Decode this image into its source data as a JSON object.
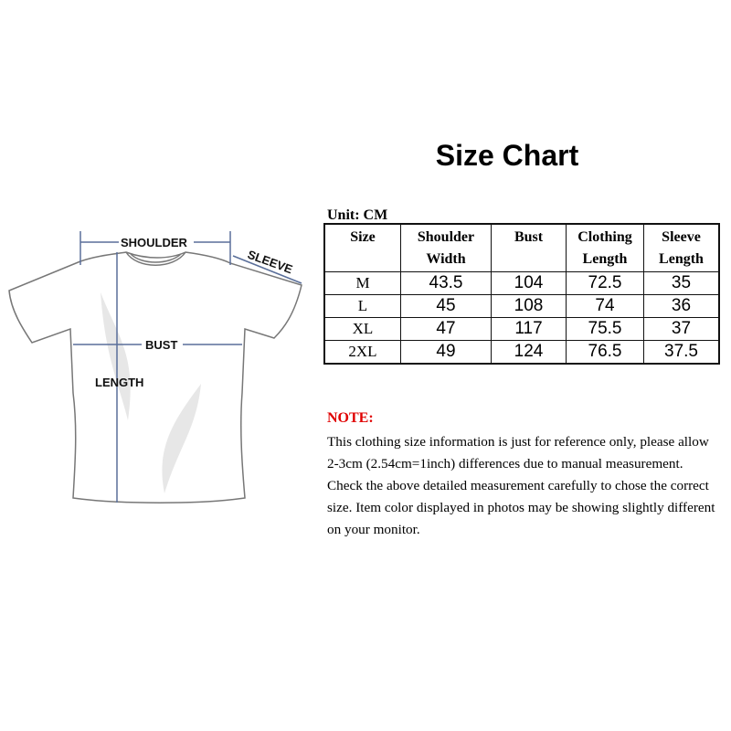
{
  "title": "Size Chart",
  "unit": "Unit: CM",
  "diagram_labels": {
    "shoulder": "SHOULDER",
    "sleeve": "SLEEVE",
    "bust": "BUST",
    "length": "LENGTH"
  },
  "table": {
    "headers": [
      [
        "Size"
      ],
      [
        "Shoulder",
        "Width"
      ],
      [
        "Bust"
      ],
      [
        "Clothing",
        "Length"
      ],
      [
        "Sleeve",
        "Length"
      ]
    ],
    "rows": [
      [
        "M",
        "43.5",
        "104",
        "72.5",
        "35"
      ],
      [
        "L",
        "45",
        "108",
        "74",
        "36"
      ],
      [
        "XL",
        "47",
        "117",
        "75.5",
        "37"
      ],
      [
        "2XL",
        "49",
        "124",
        "76.5",
        "37.5"
      ]
    ]
  },
  "note": {
    "title": "NOTE:",
    "text": "This clothing size information is just for reference only, please allow 2-3cm (2.54cm=1inch) differences due to manual measurement. Check the above detailed measurement carefully to chose the correct size. Item color displayed in photos may be showing slightly different on your monitor."
  },
  "colors": {
    "note_title": "#e00000",
    "measure_line": "#5a6f9a"
  }
}
